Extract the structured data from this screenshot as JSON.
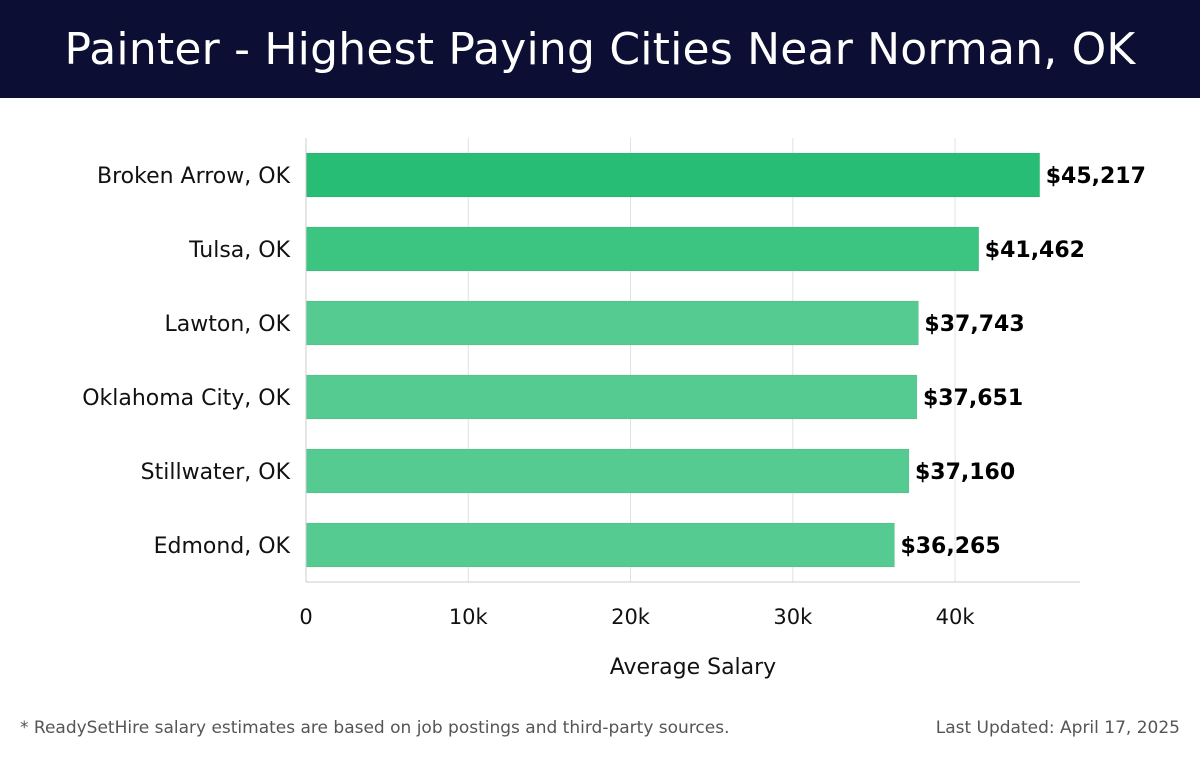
{
  "header": {
    "title": "Painter - Highest Paying Cities Near Norman, OK"
  },
  "chart_data": {
    "type": "bar",
    "orientation": "horizontal",
    "categories": [
      "Broken Arrow, OK",
      "Tulsa, OK",
      "Lawton, OK",
      "Oklahoma City, OK",
      "Stillwater, OK",
      "Edmond, OK"
    ],
    "values": [
      45217,
      41462,
      37743,
      37651,
      37160,
      36265
    ],
    "value_labels": [
      "$45,217",
      "$41,462",
      "$37,743",
      "$37,651",
      "$37,160",
      "$36,265"
    ],
    "bar_colors": [
      "#27bd75",
      "#3cc581",
      "#55cb91",
      "#55cb91",
      "#55cb91",
      "#55cb91"
    ],
    "xlabel": "Average Salary",
    "ylabel": "",
    "xlim": [
      0,
      47700
    ],
    "x_ticks": [
      0,
      10000,
      20000,
      30000,
      40000
    ],
    "x_tick_labels": [
      "0",
      "10k",
      "20k",
      "30k",
      "40k"
    ],
    "grid": true
  },
  "footer": {
    "note": "* ReadySetHire salary estimates are based on job postings and third-party sources.",
    "updated": "Last Updated: April 17, 2025"
  }
}
